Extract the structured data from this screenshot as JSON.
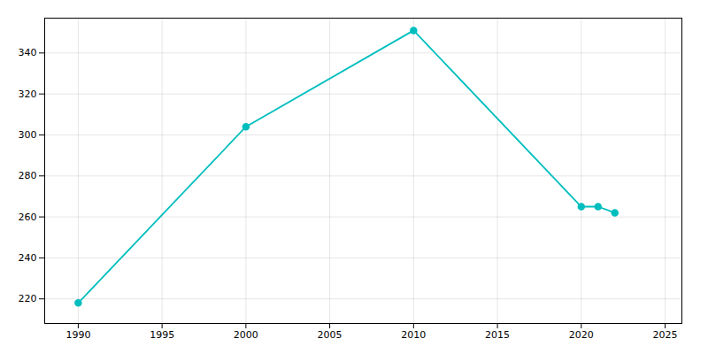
{
  "chart_data": {
    "type": "line",
    "x": [
      1990,
      2000,
      2010,
      2020,
      2021,
      2022
    ],
    "values": [
      218,
      304,
      351,
      265,
      265,
      262
    ],
    "color": "#00BEBE",
    "marker": "circle",
    "xlim": [
      1988,
      2026
    ],
    "ylim": [
      208,
      357
    ],
    "xticks": [
      1990,
      1995,
      2000,
      2005,
      2010,
      2015,
      2020,
      2025
    ],
    "yticks": [
      220,
      240,
      260,
      280,
      300,
      320,
      340
    ],
    "grid": true
  }
}
